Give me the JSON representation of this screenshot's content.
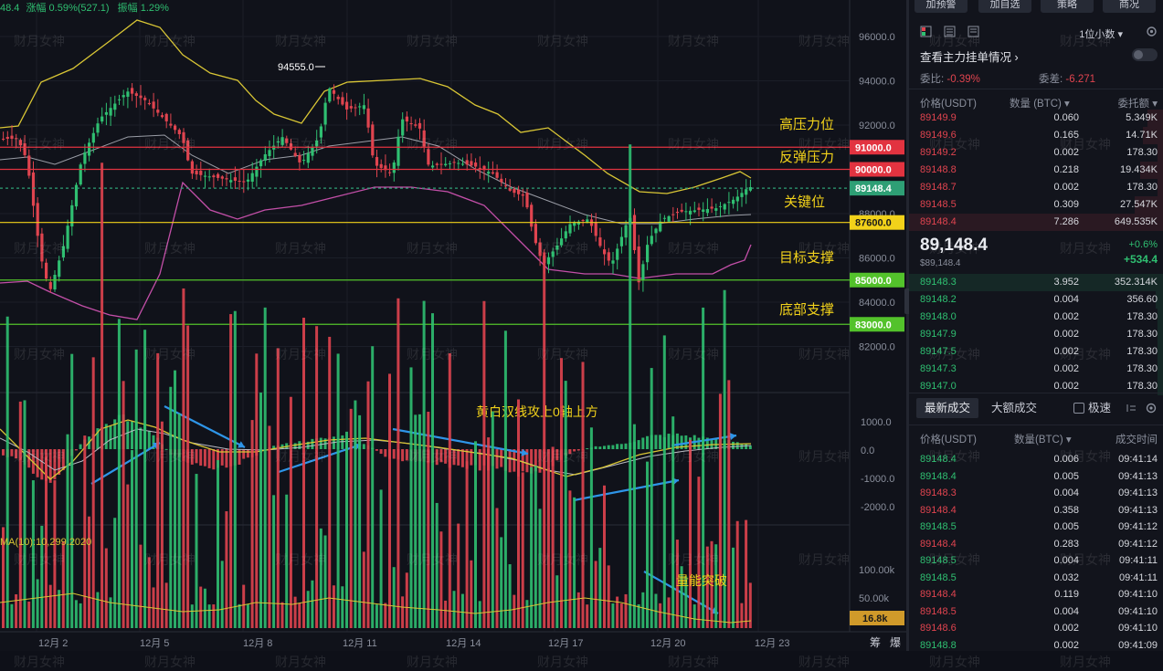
{
  "header": {
    "price_fragment": "48.4",
    "change": "涨幅 0.59%(527.1)",
    "amplitude": "振幅 1.29%"
  },
  "annotations": {
    "peak_label": "94555.0",
    "high_resistance": "高压力位",
    "rebound_resistance": "反弹压力",
    "key_level": "关键位",
    "target_support": "目标支撑",
    "bottom_support": "底部支撑",
    "macd_note": "黄白双线攻上0轴上方",
    "volume_note": "量能突破"
  },
  "level_tags": {
    "r91000": "91000.0",
    "r90000": "90000.0",
    "current": "89148.4",
    "k87600": "87600.0",
    "s85000": "85000.0",
    "s83000": "83000.0"
  },
  "volume_tag": "16.8k",
  "ma_label": "MA(10):10,299.2020",
  "price_axis": [
    "96000.0",
    "94000.0",
    "92000.0",
    "90000.0",
    "88000.0",
    "86000.0",
    "84000.0",
    "82000.0"
  ],
  "macd_axis": [
    "1000.0",
    "0.0",
    "-1000.0",
    "-2000.0"
  ],
  "vol_axis": [
    "100.00k",
    "50.00k"
  ],
  "x_axis": [
    "12月 2",
    "12月 5",
    "12月 8",
    "12月 11",
    "12月 14",
    "12月 17",
    "12月 20",
    "12月 23"
  ],
  "corner_labels": [
    "筹",
    "爆"
  ],
  "watermark": "财月女神",
  "colors": {
    "up": "#2fbf71",
    "down": "#e0444f",
    "resistance": "#e23340",
    "key": "#f2d21a",
    "support": "#53c22b",
    "upper_band": "#d9c635",
    "lower_band": "#c34fa8",
    "mid_band": "#9a9da6",
    "current": "#2e9f75",
    "arrow": "#2e95e8"
  },
  "panel": {
    "buttons": [
      "加预警",
      "加自选",
      "策略",
      "商况"
    ],
    "precision": "1位小数",
    "order_book_title": "查看主力挂单情况",
    "ratio_label": "委比:",
    "ratio_value": "-0.39%",
    "diff_label": "委差:",
    "diff_value": "-6.271",
    "col_price": "价格(USDT)",
    "col_qty": "数量 (BTC)",
    "col_total": "委托额",
    "asks": [
      {
        "price": "89149.9",
        "qty": "0.060",
        "total": "5.349K",
        "depth": 0.06
      },
      {
        "price": "89149.6",
        "qty": "0.165",
        "total": "14.71K",
        "depth": 0.08
      },
      {
        "price": "89149.2",
        "qty": "0.002",
        "total": "178.30",
        "depth": 0.02
      },
      {
        "price": "89148.8",
        "qty": "0.218",
        "total": "19.434K",
        "depth": 0.09
      },
      {
        "price": "89148.7",
        "qty": "0.002",
        "total": "178.30",
        "depth": 0.02
      },
      {
        "price": "89148.5",
        "qty": "0.309",
        "total": "27.547K",
        "depth": 0.11
      },
      {
        "price": "89148.4",
        "qty": "7.286",
        "total": "649.535K",
        "depth": 1.0
      }
    ],
    "last_price": "89,148.4",
    "last_price_sub": "$89,148.4",
    "last_pct": "+0.6%",
    "last_change": "+534.4",
    "bids": [
      {
        "price": "89148.3",
        "qty": "3.952",
        "total": "352.314K",
        "depth": 1.0
      },
      {
        "price": "89148.2",
        "qty": "0.004",
        "total": "356.60",
        "depth": 0.03
      },
      {
        "price": "89148.0",
        "qty": "0.002",
        "total": "178.30",
        "depth": 0.02
      },
      {
        "price": "89147.9",
        "qty": "0.002",
        "total": "178.30",
        "depth": 0.02
      },
      {
        "price": "89147.5",
        "qty": "0.002",
        "total": "178.30",
        "depth": 0.02
      },
      {
        "price": "89147.3",
        "qty": "0.002",
        "total": "178.30",
        "depth": 0.02
      },
      {
        "price": "89147.0",
        "qty": "0.002",
        "total": "178.30",
        "depth": 0.02
      }
    ],
    "tab_latest": "最新成交",
    "tab_large": "大额成交",
    "fast_label": "极速",
    "col_time": "成交时间",
    "col_price2": "价格(USDT)",
    "col_qty2": "数量(BTC)",
    "trades": [
      {
        "price": "89148.4",
        "qty": "0.006",
        "time": "09:41:14",
        "side": "buy"
      },
      {
        "price": "89148.4",
        "qty": "0.005",
        "time": "09:41:13",
        "side": "buy"
      },
      {
        "price": "89148.3",
        "qty": "0.004",
        "time": "09:41:13",
        "side": "sell"
      },
      {
        "price": "89148.4",
        "qty": "0.358",
        "time": "09:41:13",
        "side": "sell"
      },
      {
        "price": "89148.5",
        "qty": "0.005",
        "time": "09:41:12",
        "side": "buy"
      },
      {
        "price": "89148.4",
        "qty": "0.283",
        "time": "09:41:12",
        "side": "sell"
      },
      {
        "price": "89148.5",
        "qty": "0.004",
        "time": "09:41:11",
        "side": "buy"
      },
      {
        "price": "89148.5",
        "qty": "0.032",
        "time": "09:41:11",
        "side": "buy"
      },
      {
        "price": "89148.4",
        "qty": "0.119",
        "time": "09:41:10",
        "side": "sell"
      },
      {
        "price": "89148.5",
        "qty": "0.004",
        "time": "09:41:10",
        "side": "sell"
      },
      {
        "price": "89148.6",
        "qty": "0.002",
        "time": "09:41:10",
        "side": "sell"
      },
      {
        "price": "89148.8",
        "qty": "0.002",
        "time": "09:41:09",
        "side": "buy"
      }
    ]
  }
}
